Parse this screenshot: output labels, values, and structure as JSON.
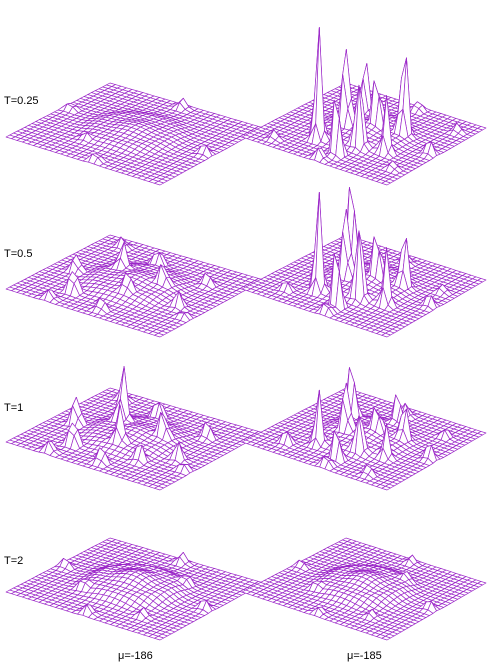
{
  "row_labels": [
    "T=0.25",
    "T=0.5",
    "T=1",
    "T=2"
  ],
  "column_labels": [
    "μ=-186",
    "μ=-185"
  ],
  "colors": {
    "mesh": "#9b27c8",
    "face": "#ffffff",
    "background": "#ffffff"
  },
  "grid_size": 28,
  "panels": [
    {
      "row": 0,
      "col": 0,
      "bump_height": 0.35,
      "small_peaks": [
        [
          0.05,
          0.55,
          0.45
        ],
        [
          0.55,
          0.05,
          0.4
        ],
        [
          0.95,
          0.5,
          0.5
        ],
        [
          0.5,
          0.95,
          0.5
        ],
        [
          0.25,
          0.35,
          0.3
        ]
      ],
      "large_peaks": []
    },
    {
      "row": 0,
      "col": 1,
      "bump_height": 0.45,
      "small_peaks": [
        [
          0.05,
          0.5,
          0.6
        ],
        [
          0.95,
          0.55,
          0.5
        ],
        [
          0.5,
          0.95,
          0.7
        ],
        [
          0.1,
          0.15,
          0.4
        ],
        [
          0.85,
          0.9,
          0.4
        ],
        [
          0.2,
          0.9,
          0.4
        ]
      ],
      "large_peaks": [
        [
          0.25,
          0.35,
          5.2
        ],
        [
          0.15,
          0.55,
          3.4
        ],
        [
          0.3,
          0.6,
          3.8
        ],
        [
          0.45,
          0.4,
          4.6
        ],
        [
          0.55,
          0.55,
          3.3
        ],
        [
          0.7,
          0.35,
          3.0
        ],
        [
          0.6,
          0.7,
          4.7
        ],
        [
          0.35,
          0.75,
          2.6
        ]
      ]
    },
    {
      "row": 1,
      "col": 0,
      "bump_height": 0.45,
      "small_peaks": [
        [
          0.2,
          0.3,
          1.3
        ],
        [
          0.45,
          0.15,
          0.9
        ],
        [
          0.35,
          0.55,
          0.9
        ],
        [
          0.6,
          0.35,
          1.2
        ],
        [
          0.55,
          0.65,
          1.1
        ],
        [
          0.8,
          0.45,
          0.9
        ],
        [
          0.4,
          0.85,
          0.8
        ],
        [
          0.1,
          0.55,
          0.6
        ],
        [
          0.75,
          0.8,
          0.6
        ],
        [
          0.05,
          0.25,
          0.5
        ],
        [
          0.9,
          0.15,
          0.5
        ],
        [
          0.3,
          0.95,
          0.4
        ]
      ],
      "large_peaks": []
    },
    {
      "row": 1,
      "col": 1,
      "bump_height": 0.45,
      "small_peaks": [
        [
          0.05,
          0.55,
          0.6
        ],
        [
          0.9,
          0.5,
          0.5
        ],
        [
          0.5,
          0.95,
          0.6
        ],
        [
          0.15,
          0.2,
          0.5
        ],
        [
          0.7,
          0.9,
          0.4
        ]
      ],
      "large_peaks": [
        [
          0.25,
          0.35,
          4.6
        ],
        [
          0.15,
          0.55,
          3.3
        ],
        [
          0.3,
          0.6,
          4.2
        ],
        [
          0.45,
          0.4,
          4.1
        ],
        [
          0.55,
          0.55,
          3.0
        ],
        [
          0.65,
          0.3,
          4.8
        ],
        [
          0.6,
          0.7,
          2.9
        ],
        [
          0.35,
          0.75,
          2.6
        ]
      ]
    },
    {
      "row": 2,
      "col": 0,
      "bump_height": 0.45,
      "small_peaks": [
        [
          0.2,
          0.3,
          1.4
        ],
        [
          0.45,
          0.15,
          1.5
        ],
        [
          0.35,
          0.5,
          1.6
        ],
        [
          0.6,
          0.35,
          2.6
        ],
        [
          0.55,
          0.65,
          1.4
        ],
        [
          0.8,
          0.45,
          1.1
        ],
        [
          0.4,
          0.85,
          0.9
        ],
        [
          0.1,
          0.55,
          0.8
        ],
        [
          0.75,
          0.8,
          0.8
        ],
        [
          0.05,
          0.25,
          0.6
        ],
        [
          0.9,
          0.15,
          0.6
        ],
        [
          0.3,
          0.95,
          0.5
        ],
        [
          0.25,
          0.7,
          0.9
        ]
      ],
      "large_peaks": []
    },
    {
      "row": 2,
      "col": 1,
      "bump_height": 0.45,
      "small_peaks": [
        [
          0.05,
          0.55,
          0.6
        ],
        [
          0.9,
          0.5,
          0.6
        ],
        [
          0.5,
          0.95,
          0.8
        ],
        [
          0.15,
          0.2,
          0.7
        ],
        [
          0.8,
          0.85,
          0.5
        ],
        [
          0.1,
          0.8,
          0.5
        ]
      ],
      "large_peaks": [
        [
          0.25,
          0.35,
          2.5
        ],
        [
          0.15,
          0.55,
          1.8
        ],
        [
          0.3,
          0.6,
          2.2
        ],
        [
          0.45,
          0.4,
          2.8
        ],
        [
          0.55,
          0.55,
          1.6
        ],
        [
          0.65,
          0.3,
          3.1
        ],
        [
          0.6,
          0.7,
          1.8
        ],
        [
          0.35,
          0.75,
          1.5
        ],
        [
          0.75,
          0.55,
          1.6
        ]
      ]
    },
    {
      "row": 3,
      "col": 0,
      "bump_height": 0.7,
      "small_peaks": [
        [
          0.05,
          0.5,
          0.5
        ],
        [
          0.5,
          0.05,
          0.45
        ],
        [
          0.95,
          0.5,
          0.55
        ],
        [
          0.5,
          0.95,
          0.5
        ],
        [
          0.3,
          0.3,
          0.5
        ],
        [
          0.7,
          0.7,
          0.5
        ],
        [
          0.2,
          0.75,
          0.45
        ]
      ],
      "large_peaks": []
    },
    {
      "row": 3,
      "col": 1,
      "bump_height": 0.6,
      "small_peaks": [
        [
          0.05,
          0.5,
          0.35
        ],
        [
          0.5,
          0.05,
          0.35
        ],
        [
          0.95,
          0.5,
          0.4
        ],
        [
          0.5,
          0.95,
          0.45
        ],
        [
          0.3,
          0.3,
          0.4
        ],
        [
          0.7,
          0.65,
          0.4
        ],
        [
          0.2,
          0.75,
          0.35
        ]
      ],
      "large_peaks": []
    }
  ]
}
